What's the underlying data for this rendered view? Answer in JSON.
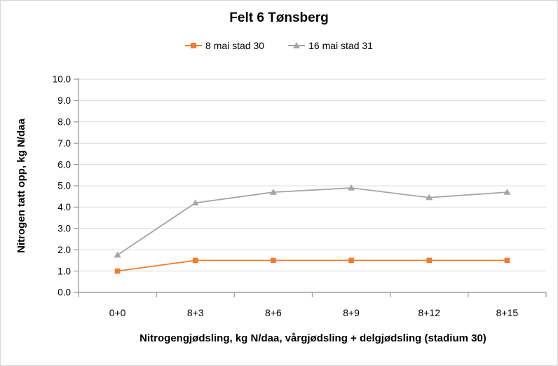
{
  "chart_data": {
    "type": "line",
    "title": "Felt 6 Tønsberg",
    "categories": [
      "0+0",
      "8+3",
      "8+6",
      "8+9",
      "8+12",
      "8+15"
    ],
    "series": [
      {
        "name": "8 mai stad 30",
        "marker": "square",
        "color": "#ED7D31",
        "values": [
          1.0,
          1.5,
          1.5,
          1.5,
          1.5,
          1.5
        ]
      },
      {
        "name": "16 mai stad 31",
        "marker": "triangle",
        "color": "#A5A5A5",
        "values": [
          1.75,
          4.2,
          4.7,
          4.9,
          4.45,
          4.7
        ]
      }
    ],
    "xlabel": "Nitrogengjødsling, kg N/daa, vårgjødsling + delgjødsling (stadium 30)",
    "ylabel": "Nitrogen tatt opp, kg N/daa",
    "ylim": [
      0,
      10
    ],
    "ytick_step": 1.0,
    "ytick_decimals": 1,
    "grid": "horizontal",
    "legend_position": "top"
  },
  "colors": {
    "gridline": "#dcdcdc",
    "axis": "#9e9e9e",
    "text": "#000000",
    "frame_border": "#d6d6d6",
    "background": "#ffffff"
  }
}
